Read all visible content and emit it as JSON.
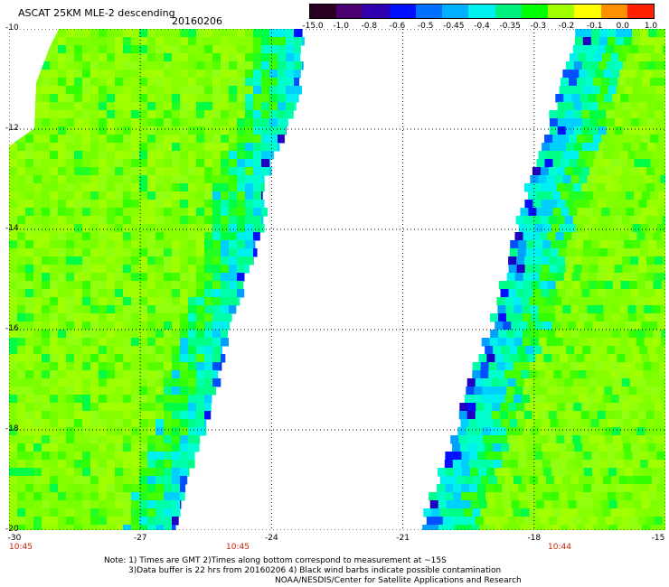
{
  "header": {
    "title": "ASCAT 25KM MLE-2 descending",
    "date": "20160206"
  },
  "colorbar": {
    "labels": [
      "-15.0",
      "-1.0",
      "-0.8",
      "-0.6",
      "-0.5",
      "-0.45",
      "-0.4",
      "-0.35",
      "-0.3",
      "-0.2",
      "-0.1",
      "0.0",
      "1.0"
    ],
    "colors": [
      "#2a0020",
      "#4a0070",
      "#3000b0",
      "#0010ff",
      "#0070ff",
      "#00b0ff",
      "#00f0f0",
      "#00f080",
      "#00ff00",
      "#a0ff00",
      "#ffff00",
      "#ff9000",
      "#ff2000"
    ]
  },
  "map": {
    "lon_range": [
      -30,
      -15
    ],
    "lat_range": [
      -10,
      -20
    ],
    "lon_ticks": [
      "-30",
      "-27",
      "-24",
      "-21",
      "-18",
      "-15"
    ],
    "lat_ticks": [
      "-10",
      "-12",
      "-14",
      "-16",
      "-18",
      "-20"
    ],
    "time_labels": [
      "10:45",
      "10:45",
      "10:44"
    ],
    "swaths": [
      {
        "name": "west",
        "lon_min": -30.0,
        "lat_range": [
          -10,
          -20
        ],
        "edge_lon": [
          -23.3,
          -23.3,
          -23.7,
          -24.1,
          -24.2,
          -24.6,
          -25.0,
          -25.2,
          -25.5,
          -25.9,
          -26.2
        ]
      },
      {
        "name": "east",
        "lon_max": -15.0,
        "lat_range": [
          -10,
          -20
        ],
        "edge_lon": [
          -17.0,
          -17.3,
          -17.7,
          -18.1,
          -18.4,
          -18.7,
          -19.0,
          -19.5,
          -19.8,
          -20.2,
          -20.6
        ]
      }
    ]
  },
  "notes": {
    "line1": "Note: 1) Times are GMT 2)Times along bottom correspond to measurement at ~15S",
    "line2": "3)Data buffer is 22 hrs from 20160206 4) Black wind barbs indicate possible contamination",
    "line3": "NOAA/NESDIS/Center for Satellite Applications and Research"
  }
}
